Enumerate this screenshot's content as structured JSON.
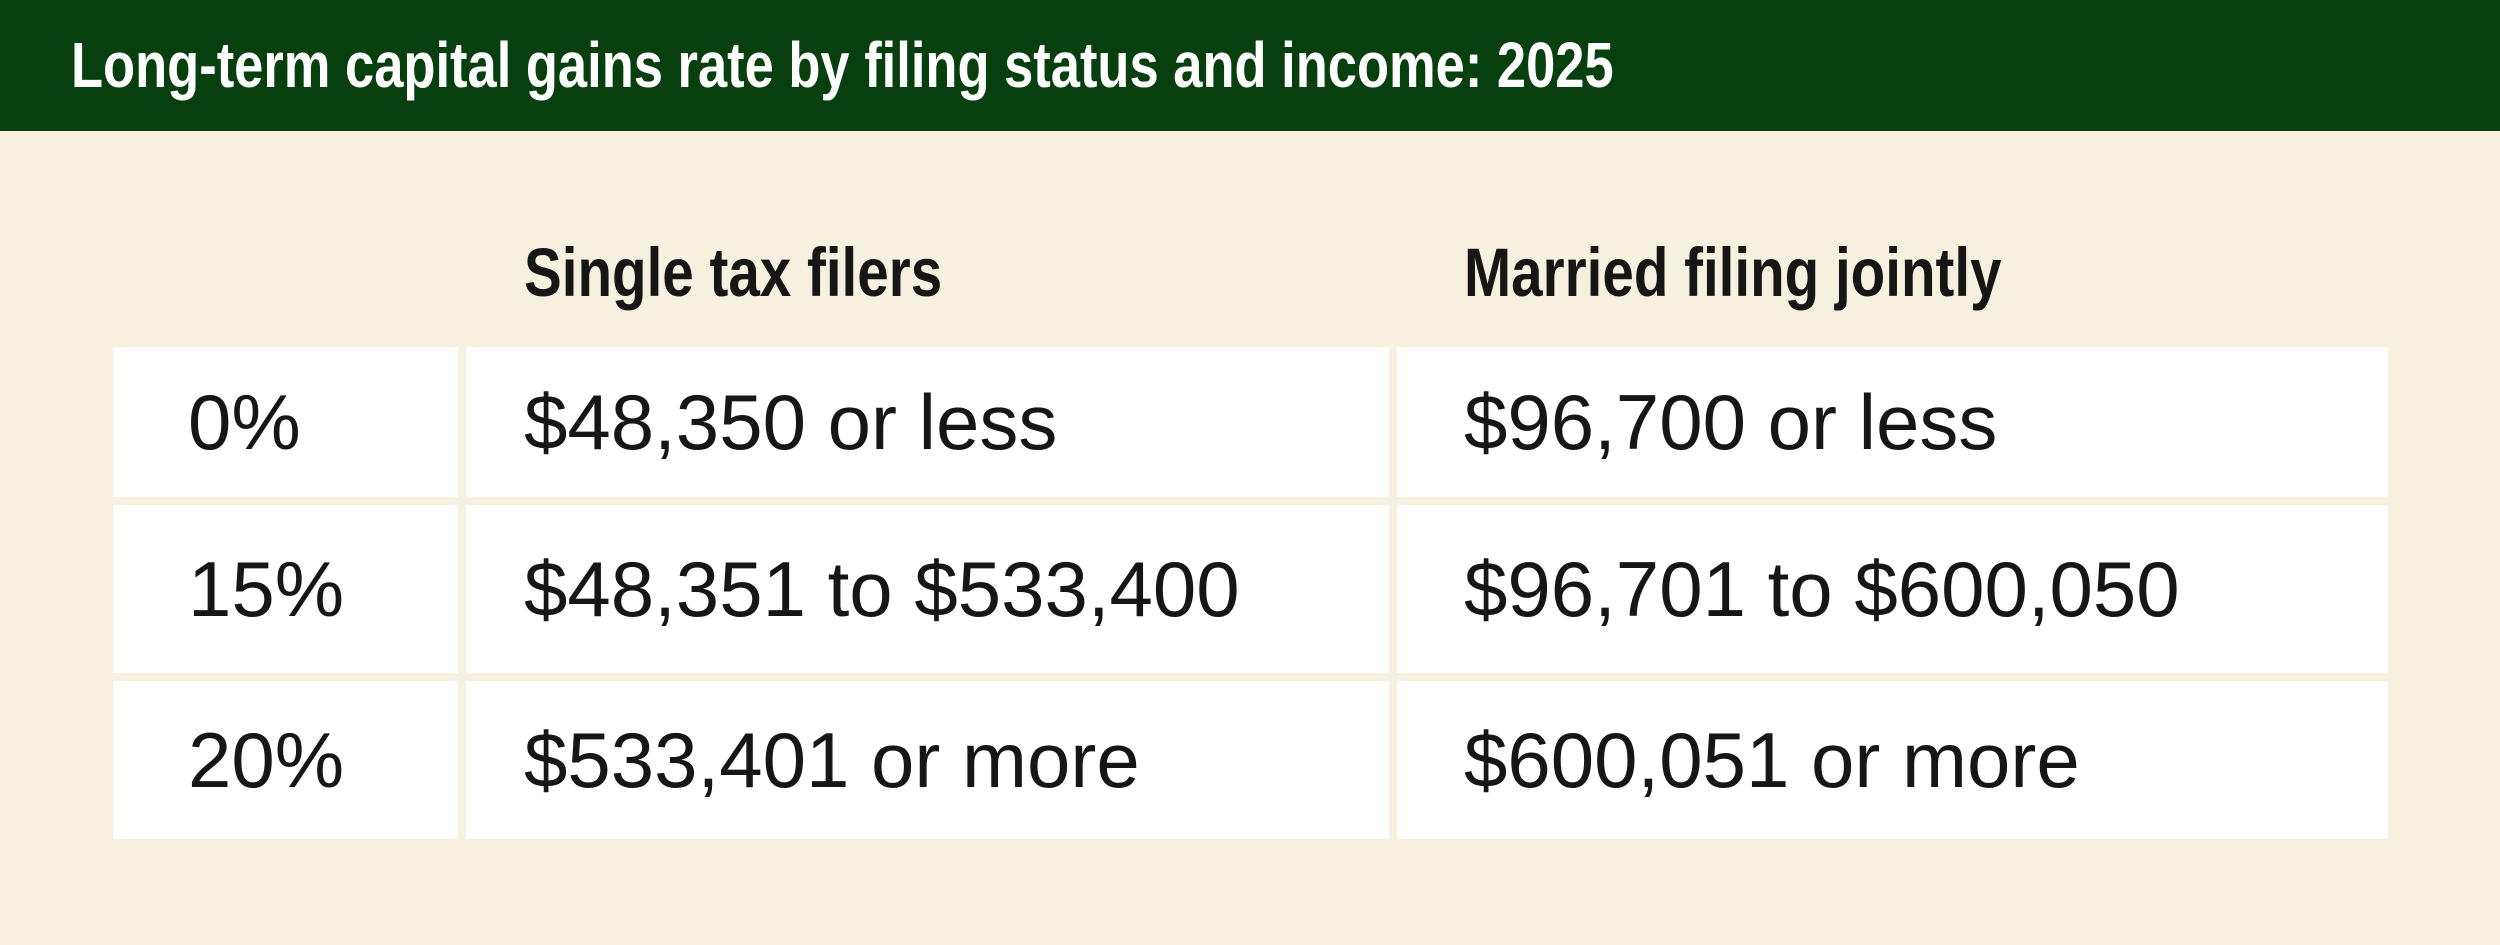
{
  "chart_data": {
    "type": "table",
    "title": "Long-term capital gains rate by filing status and income: 2025",
    "columns": [
      "",
      "Single tax filers",
      "Married filing jointly"
    ],
    "rows": [
      [
        "0%",
        "$48,350 or less",
        "$96,700 or less"
      ],
      [
        "15%",
        "$48,351 to $533,400",
        "$96,701 to $600,050"
      ],
      [
        "20%",
        "$533,401 or more",
        "$600,051 or more"
      ]
    ]
  },
  "colors": {
    "header_bar_green": "#07400E",
    "background_cream": "#F5F1DE",
    "cell_white": "#FFFFFF",
    "text_dark": "#161616",
    "title_text_white": "#FFFFFF"
  }
}
